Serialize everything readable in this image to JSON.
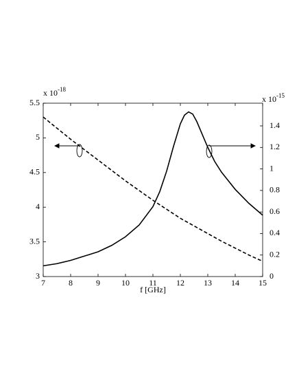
{
  "chart_data": {
    "type": "line",
    "xlabel": "f [GHz]",
    "y_exponent_base": "x 10",
    "y_exponent": "-18",
    "y2_exponent_base": "x 10",
    "y2_exponent": "-15",
    "xlim": [
      7,
      15
    ],
    "xticks": [
      7,
      8,
      9,
      10,
      11,
      12,
      13,
      14,
      15
    ],
    "ylim": [
      3,
      5.5
    ],
    "yticks": [
      3,
      3.5,
      4,
      4.5,
      5,
      5.5
    ],
    "y2lim": [
      0,
      1.611
    ],
    "y2ticks": [
      0,
      0.2,
      0.4,
      0.6,
      0.8,
      1,
      1.2,
      1.4
    ],
    "series": [
      {
        "color": "#000000",
        "dash": true,
        "axis": "y",
        "x": [
          7,
          7.5,
          8,
          8.5,
          9,
          9.5,
          10,
          10.5,
          11,
          11.5,
          12,
          12.5,
          13,
          13.5,
          14,
          14.5,
          15
        ],
        "values": [
          5.3,
          5.14,
          4.98,
          4.83,
          4.68,
          4.53,
          4.38,
          4.24,
          4.1,
          3.97,
          3.84,
          3.73,
          3.62,
          3.51,
          3.41,
          3.31,
          3.22
        ]
      },
      {
        "color": "#000000",
        "dash": false,
        "axis": "y2",
        "x": [
          7,
          7.5,
          8,
          8.5,
          9,
          9.5,
          10,
          10.5,
          11,
          11.25,
          11.5,
          11.75,
          12,
          12.15,
          12.3,
          12.45,
          12.6,
          12.8,
          13,
          13.25,
          13.5,
          14,
          14.5,
          15
        ],
        "values": [
          0.1,
          0.12,
          0.15,
          0.19,
          0.23,
          0.29,
          0.37,
          0.48,
          0.65,
          0.79,
          0.98,
          1.21,
          1.42,
          1.5,
          1.53,
          1.51,
          1.44,
          1.32,
          1.2,
          1.07,
          0.97,
          0.81,
          0.68,
          0.57
        ]
      }
    ]
  }
}
